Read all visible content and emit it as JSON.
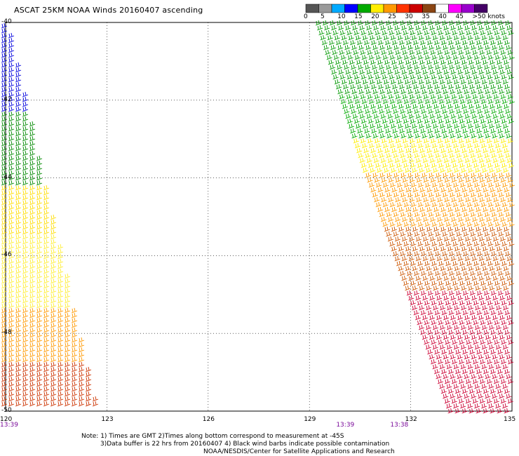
{
  "title": "ASCAT 25KM NOAA Winds 20160407 ascending",
  "colorbar": {
    "colors": [
      "#555555",
      "#9a9a9a",
      "#00aaff",
      "#0000ff",
      "#00aa00",
      "#ffee00",
      "#ff9900",
      "#ff3300",
      "#cc0000",
      "#8b4513",
      "#ffffff",
      "#ff00ff",
      "#9900cc",
      "#440066"
    ],
    "labels": [
      "0",
      "5",
      "10",
      "15",
      "20",
      "25",
      "30",
      "35",
      "40",
      "45",
      ">50 knots"
    ]
  },
  "map": {
    "lon_range": [
      120,
      135
    ],
    "lat_range": [
      -50,
      -40
    ],
    "lon_ticks": [
      "120",
      "123",
      "126",
      "129",
      "132",
      "135"
    ],
    "lat_ticks": [
      "-40",
      "-42",
      "-44",
      "-46",
      "-48",
      "-50"
    ],
    "grid": "dotted"
  },
  "time_labels": [
    {
      "lon": 120,
      "text": "13:39"
    },
    {
      "lon": 130,
      "text": "13:39"
    },
    {
      "lon": 131.6,
      "text": "13:38"
    }
  ],
  "notes": {
    "line1": "Note: 1) Times are GMT 2)Times along bottom correspond to measurement at -45S",
    "line2": "3)Data buffer is 22 hrs from 20160407 4) Black wind barbs indicate possible contamination",
    "line3": "NOAA/NESDIS/Center for Satellite Applications and Research"
  }
}
